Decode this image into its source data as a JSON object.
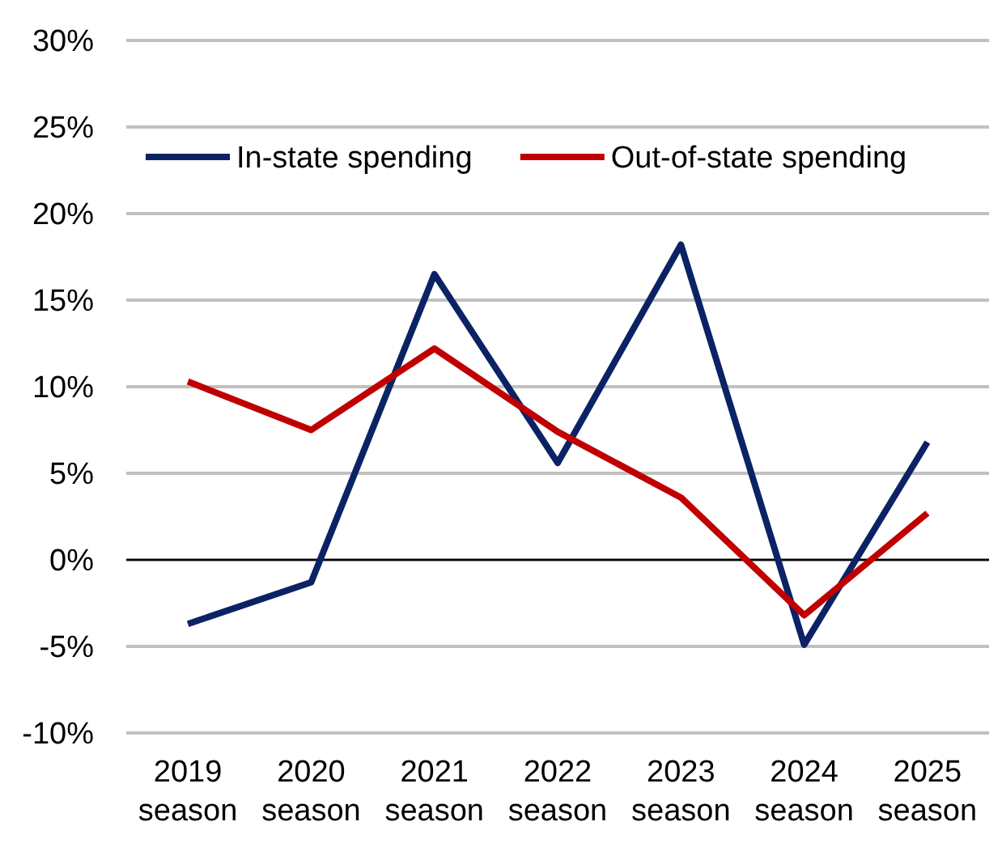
{
  "chart_data": {
    "type": "line",
    "categories": [
      "2019 season",
      "2020 season",
      "2021 season",
      "2022 season",
      "2023 season",
      "2024 season",
      "2025 season"
    ],
    "series": [
      {
        "name": "In-state spending",
        "color": "#0b2265",
        "values": [
          -3.7,
          -1.3,
          16.5,
          5.6,
          18.2,
          -4.9,
          6.8
        ]
      },
      {
        "name": "Out-of-state spending",
        "color": "#c00000",
        "values": [
          10.3,
          7.5,
          12.2,
          7.4,
          3.6,
          -3.2,
          2.7
        ]
      }
    ],
    "ylim": [
      -10,
      30
    ],
    "yticks": [
      {
        "value": -10,
        "label": "-10%"
      },
      {
        "value": -5,
        "label": "-5%"
      },
      {
        "value": 0,
        "label": "0%"
      },
      {
        "value": 5,
        "label": "5%"
      },
      {
        "value": 10,
        "label": "10%"
      },
      {
        "value": 15,
        "label": "15%"
      },
      {
        "value": 20,
        "label": "20%"
      },
      {
        "value": 25,
        "label": "25%"
      },
      {
        "value": 30,
        "label": "30%"
      }
    ],
    "grid": "y",
    "legend": "top",
    "marker": "none",
    "line_style": "solid"
  }
}
